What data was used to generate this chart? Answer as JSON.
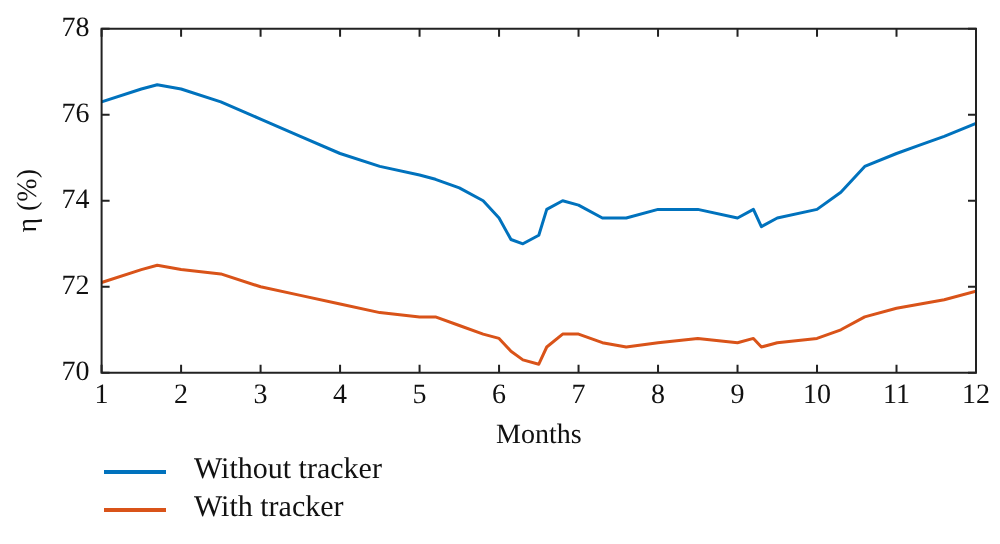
{
  "chart_data": {
    "type": "line",
    "xlabel": "Months",
    "ylabel": "η (%)",
    "xlim": [
      1,
      12
    ],
    "xticks": [
      1,
      2,
      3,
      4,
      5,
      6,
      7,
      8,
      9,
      10,
      11,
      12
    ],
    "ylim": [
      70,
      78
    ],
    "yticks": [
      70,
      72,
      74,
      76,
      78
    ],
    "grid": false,
    "legend": "bottom left",
    "marker": "none",
    "line_style": "solid",
    "x": [
      1,
      1.5,
      1.7,
      2,
      2.5,
      3,
      3.5,
      4,
      4.5,
      5,
      5.2,
      5.5,
      5.8,
      6,
      6.15,
      6.3,
      6.5,
      6.6,
      6.8,
      7,
      7.3,
      7.6,
      8,
      8.5,
      9,
      9.2,
      9.3,
      9.5,
      10,
      10.3,
      10.6,
      11,
      11.3,
      11.6,
      12
    ],
    "series": [
      {
        "name": "Without tracker",
        "color": "#0072bd",
        "values": [
          76.3,
          76.6,
          76.7,
          76.6,
          76.3,
          75.9,
          75.5,
          75.1,
          74.8,
          74.6,
          74.5,
          74.3,
          74.0,
          73.6,
          73.1,
          73.0,
          73.2,
          73.8,
          74.0,
          73.9,
          73.6,
          73.6,
          73.8,
          73.8,
          73.6,
          73.8,
          73.4,
          73.6,
          73.8,
          74.2,
          74.8,
          75.1,
          75.3,
          75.5,
          75.8
        ]
      },
      {
        "name": "With tracker",
        "color": "#d95319",
        "values": [
          72.1,
          72.4,
          72.5,
          72.4,
          72.3,
          72.0,
          71.8,
          71.6,
          71.4,
          71.3,
          71.3,
          71.1,
          70.9,
          70.8,
          70.5,
          70.3,
          70.2,
          70.6,
          70.9,
          70.9,
          70.7,
          70.6,
          70.7,
          70.8,
          70.7,
          70.8,
          70.6,
          70.7,
          70.8,
          71.0,
          71.3,
          71.5,
          71.6,
          71.7,
          71.9
        ]
      }
    ]
  }
}
